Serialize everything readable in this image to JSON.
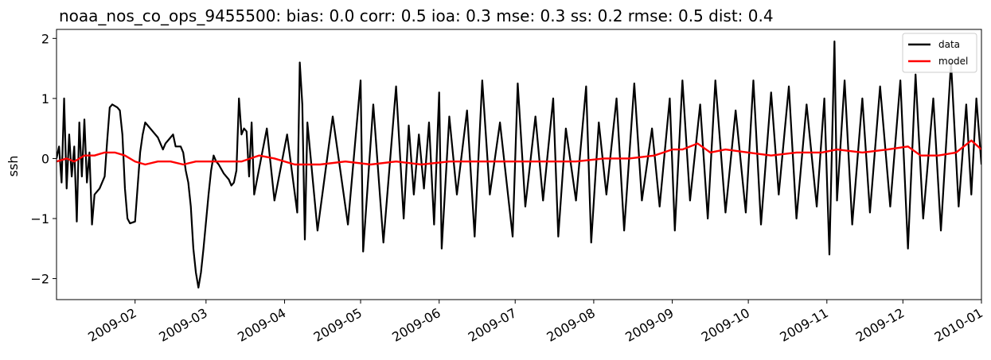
{
  "chart_data": {
    "type": "line",
    "title": "noaa_nos_co_ops_9455500: bias: 0.0  corr: 0.5  ioa: 0.3  mse: 0.3  ss: 0.2  rmse: 0.5  dist: 0.4",
    "xlabel": "",
    "ylabel": "ssh",
    "xlim": [
      "2009-01-01",
      "2010-01-01"
    ],
    "ylim": [
      -2.35,
      2.15
    ],
    "x_ticks": [
      "2009-02",
      "2009-03",
      "2009-04",
      "2009-05",
      "2009-06",
      "2009-07",
      "2009-08",
      "2009-09",
      "2009-10",
      "2009-11",
      "2009-12",
      "2010-01"
    ],
    "y_ticks": [
      -2,
      -1,
      0,
      1,
      2
    ],
    "grid": false,
    "legend": {
      "placement": "top-right",
      "entries": [
        "data",
        "model"
      ]
    },
    "series": [
      {
        "name": "data",
        "color": "#000000",
        "points": [
          [
            "2009-01-01",
            0.0
          ],
          [
            "2009-01-02",
            0.2
          ],
          [
            "2009-01-03",
            -0.4
          ],
          [
            "2009-01-04",
            1.0
          ],
          [
            "2009-01-05",
            -0.5
          ],
          [
            "2009-01-06",
            0.4
          ],
          [
            "2009-01-07",
            -0.3
          ],
          [
            "2009-01-08",
            0.2
          ],
          [
            "2009-01-09",
            -1.05
          ],
          [
            "2009-01-10",
            0.6
          ],
          [
            "2009-01-11",
            -0.3
          ],
          [
            "2009-01-12",
            0.65
          ],
          [
            "2009-01-13",
            -0.4
          ],
          [
            "2009-01-14",
            0.1
          ],
          [
            "2009-01-15",
            -1.1
          ],
          [
            "2009-01-16",
            -0.6
          ],
          [
            "2009-01-18",
            -0.5
          ],
          [
            "2009-01-20",
            -0.3
          ],
          [
            "2009-01-21",
            0.3
          ],
          [
            "2009-01-22",
            0.85
          ],
          [
            "2009-01-23",
            0.9
          ],
          [
            "2009-01-25",
            0.85
          ],
          [
            "2009-01-26",
            0.8
          ],
          [
            "2009-01-27",
            0.4
          ],
          [
            "2009-01-28",
            -0.5
          ],
          [
            "2009-01-29",
            -1.0
          ],
          [
            "2009-01-30",
            -1.08
          ],
          [
            "2009-02-01",
            -1.05
          ],
          [
            "2009-02-03",
            0.1
          ],
          [
            "2009-02-04",
            0.4
          ],
          [
            "2009-02-05",
            0.6
          ],
          [
            "2009-02-06",
            0.55
          ],
          [
            "2009-02-08",
            0.45
          ],
          [
            "2009-02-10",
            0.35
          ],
          [
            "2009-02-12",
            0.15
          ],
          [
            "2009-02-13",
            0.25
          ],
          [
            "2009-02-15",
            0.35
          ],
          [
            "2009-02-16",
            0.4
          ],
          [
            "2009-02-17",
            0.2
          ],
          [
            "2009-02-19",
            0.2
          ],
          [
            "2009-02-20",
            0.1
          ],
          [
            "2009-02-21",
            -0.2
          ],
          [
            "2009-02-22",
            -0.4
          ],
          [
            "2009-02-23",
            -0.8
          ],
          [
            "2009-02-24",
            -1.5
          ],
          [
            "2009-02-25",
            -1.9
          ],
          [
            "2009-02-26",
            -2.15
          ],
          [
            "2009-02-27",
            -1.9
          ],
          [
            "2009-02-28",
            -1.5
          ],
          [
            "2009-03-02",
            -0.6
          ],
          [
            "2009-03-03",
            -0.2
          ],
          [
            "2009-03-04",
            0.05
          ],
          [
            "2009-03-05",
            -0.05
          ],
          [
            "2009-03-06",
            -0.1
          ],
          [
            "2009-03-08",
            -0.25
          ],
          [
            "2009-03-10",
            -0.35
          ],
          [
            "2009-03-11",
            -0.45
          ],
          [
            "2009-03-12",
            -0.4
          ],
          [
            "2009-03-13",
            -0.2
          ],
          [
            "2009-03-14",
            1.0
          ],
          [
            "2009-03-15",
            0.4
          ],
          [
            "2009-03-16",
            0.5
          ],
          [
            "2009-03-17",
            0.45
          ],
          [
            "2009-03-18",
            -0.3
          ],
          [
            "2009-03-19",
            0.6
          ],
          [
            "2009-03-20",
            -0.6
          ],
          [
            "2009-03-25",
            0.5
          ],
          [
            "2009-03-28",
            -0.7
          ],
          [
            "2009-04-02",
            0.4
          ],
          [
            "2009-04-06",
            -0.9
          ],
          [
            "2009-04-07",
            1.6
          ],
          [
            "2009-04-08",
            0.9
          ],
          [
            "2009-04-09",
            -1.35
          ],
          [
            "2009-04-10",
            0.6
          ],
          [
            "2009-04-14",
            -1.2
          ],
          [
            "2009-04-20",
            0.7
          ],
          [
            "2009-04-26",
            -1.1
          ],
          [
            "2009-05-01",
            1.3
          ],
          [
            "2009-05-02",
            -1.55
          ],
          [
            "2009-05-06",
            0.9
          ],
          [
            "2009-05-10",
            -1.4
          ],
          [
            "2009-05-15",
            1.2
          ],
          [
            "2009-05-18",
            -1.0
          ],
          [
            "2009-05-20",
            0.55
          ],
          [
            "2009-05-22",
            -0.6
          ],
          [
            "2009-05-24",
            0.4
          ],
          [
            "2009-05-26",
            -0.5
          ],
          [
            "2009-05-28",
            0.6
          ],
          [
            "2009-05-30",
            -1.1
          ],
          [
            "2009-06-01",
            1.1
          ],
          [
            "2009-06-02",
            -1.5
          ],
          [
            "2009-06-05",
            0.7
          ],
          [
            "2009-06-08",
            -0.6
          ],
          [
            "2009-06-12",
            0.8
          ],
          [
            "2009-06-15",
            -1.3
          ],
          [
            "2009-06-18",
            1.3
          ],
          [
            "2009-06-21",
            -0.6
          ],
          [
            "2009-06-25",
            0.6
          ],
          [
            "2009-06-30",
            -1.3
          ],
          [
            "2009-07-02",
            1.25
          ],
          [
            "2009-07-05",
            -0.8
          ],
          [
            "2009-07-09",
            0.7
          ],
          [
            "2009-07-12",
            -0.7
          ],
          [
            "2009-07-16",
            1.0
          ],
          [
            "2009-07-18",
            -1.3
          ],
          [
            "2009-07-21",
            0.5
          ],
          [
            "2009-07-25",
            -0.7
          ],
          [
            "2009-07-29",
            1.2
          ],
          [
            "2009-07-31",
            -1.4
          ],
          [
            "2009-08-03",
            0.6
          ],
          [
            "2009-08-06",
            -0.6
          ],
          [
            "2009-08-10",
            1.0
          ],
          [
            "2009-08-13",
            -1.2
          ],
          [
            "2009-08-17",
            1.25
          ],
          [
            "2009-08-20",
            -0.7
          ],
          [
            "2009-08-24",
            0.5
          ],
          [
            "2009-08-27",
            -0.8
          ],
          [
            "2009-08-31",
            1.0
          ],
          [
            "2009-09-02",
            -1.2
          ],
          [
            "2009-09-05",
            1.3
          ],
          [
            "2009-09-08",
            -0.7
          ],
          [
            "2009-09-12",
            0.9
          ],
          [
            "2009-09-15",
            -1.0
          ],
          [
            "2009-09-18",
            1.3
          ],
          [
            "2009-09-22",
            -0.9
          ],
          [
            "2009-09-26",
            0.8
          ],
          [
            "2009-09-30",
            -0.9
          ],
          [
            "2009-10-03",
            1.3
          ],
          [
            "2009-10-06",
            -1.1
          ],
          [
            "2009-10-10",
            1.1
          ],
          [
            "2009-10-13",
            -0.6
          ],
          [
            "2009-10-17",
            1.2
          ],
          [
            "2009-10-20",
            -1.0
          ],
          [
            "2009-10-24",
            0.9
          ],
          [
            "2009-10-28",
            -0.8
          ],
          [
            "2009-10-31",
            1.0
          ],
          [
            "2009-11-02",
            -1.6
          ],
          [
            "2009-11-04",
            1.95
          ],
          [
            "2009-11-05",
            -0.7
          ],
          [
            "2009-11-08",
            1.3
          ],
          [
            "2009-11-11",
            -1.1
          ],
          [
            "2009-11-15",
            1.0
          ],
          [
            "2009-11-18",
            -0.9
          ],
          [
            "2009-11-22",
            1.2
          ],
          [
            "2009-11-26",
            -0.8
          ],
          [
            "2009-11-30",
            1.3
          ],
          [
            "2009-12-03",
            -1.5
          ],
          [
            "2009-12-06",
            1.4
          ],
          [
            "2009-12-09",
            -1.0
          ],
          [
            "2009-12-13",
            1.0
          ],
          [
            "2009-12-16",
            -1.2
          ],
          [
            "2009-12-20",
            1.6
          ],
          [
            "2009-12-23",
            -0.8
          ],
          [
            "2009-12-26",
            0.9
          ],
          [
            "2009-12-28",
            -0.6
          ],
          [
            "2009-12-30",
            1.0
          ],
          [
            "2010-01-01",
            -0.1
          ]
        ]
      },
      {
        "name": "model",
        "color": "#ff0000",
        "points": [
          [
            "2009-01-01",
            -0.05
          ],
          [
            "2009-01-05",
            0.0
          ],
          [
            "2009-01-08",
            -0.05
          ],
          [
            "2009-01-12",
            0.05
          ],
          [
            "2009-01-16",
            0.05
          ],
          [
            "2009-01-20",
            0.1
          ],
          [
            "2009-01-24",
            0.1
          ],
          [
            "2009-01-28",
            0.05
          ],
          [
            "2009-02-01",
            -0.05
          ],
          [
            "2009-02-05",
            -0.1
          ],
          [
            "2009-02-10",
            -0.05
          ],
          [
            "2009-02-15",
            -0.05
          ],
          [
            "2009-02-20",
            -0.1
          ],
          [
            "2009-02-25",
            -0.05
          ],
          [
            "2009-03-01",
            -0.05
          ],
          [
            "2009-03-08",
            -0.05
          ],
          [
            "2009-03-15",
            -0.05
          ],
          [
            "2009-03-22",
            0.05
          ],
          [
            "2009-03-28",
            0.0
          ],
          [
            "2009-04-05",
            -0.1
          ],
          [
            "2009-04-15",
            -0.1
          ],
          [
            "2009-04-25",
            -0.05
          ],
          [
            "2009-05-05",
            -0.1
          ],
          [
            "2009-05-15",
            -0.05
          ],
          [
            "2009-05-25",
            -0.1
          ],
          [
            "2009-06-05",
            -0.05
          ],
          [
            "2009-06-15",
            -0.05
          ],
          [
            "2009-06-25",
            -0.05
          ],
          [
            "2009-07-05",
            -0.05
          ],
          [
            "2009-07-15",
            -0.05
          ],
          [
            "2009-07-25",
            -0.05
          ],
          [
            "2009-08-05",
            0.0
          ],
          [
            "2009-08-15",
            0.0
          ],
          [
            "2009-08-25",
            0.05
          ],
          [
            "2009-09-01",
            0.15
          ],
          [
            "2009-09-05",
            0.15
          ],
          [
            "2009-09-11",
            0.25
          ],
          [
            "2009-09-16",
            0.1
          ],
          [
            "2009-09-22",
            0.15
          ],
          [
            "2009-10-01",
            0.1
          ],
          [
            "2009-10-10",
            0.05
          ],
          [
            "2009-10-20",
            0.1
          ],
          [
            "2009-10-30",
            0.1
          ],
          [
            "2009-11-05",
            0.15
          ],
          [
            "2009-11-15",
            0.1
          ],
          [
            "2009-11-25",
            0.15
          ],
          [
            "2009-12-03",
            0.2
          ],
          [
            "2009-12-08",
            0.05
          ],
          [
            "2009-12-15",
            0.05
          ],
          [
            "2009-12-22",
            0.1
          ],
          [
            "2009-12-28",
            0.3
          ],
          [
            "2010-01-01",
            0.15
          ]
        ]
      }
    ]
  }
}
